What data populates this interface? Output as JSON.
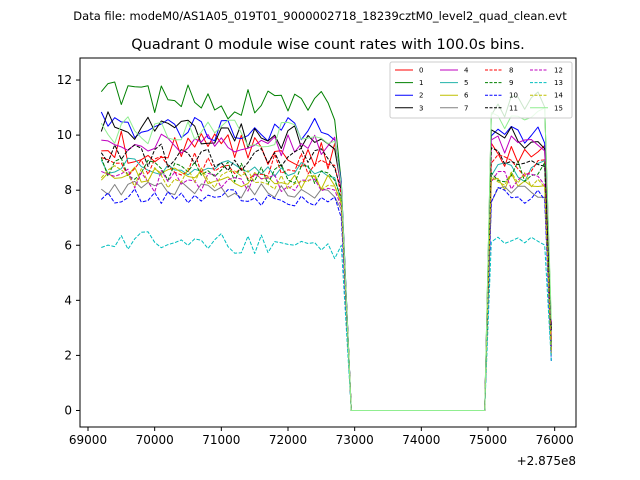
{
  "chart_data": {
    "type": "line",
    "suptitle": "Data file: modeM0/AS1A05_019T01_9000002718_18239cztM0_level2_quad_clean.evt",
    "title": "Quadrant 0 module wise count rates with 100.0s bins.",
    "xlabel": "",
    "ylabel": "",
    "x_offset_label": "+2.875e8",
    "xlim": [
      68880,
      76320
    ],
    "ylim": [
      -0.6,
      12.8
    ],
    "x_ticks": [
      69000,
      70000,
      71000,
      72000,
      73000,
      74000,
      75000,
      76000
    ],
    "x_tick_labels": [
      "69000",
      "70000",
      "71000",
      "72000",
      "73000",
      "74000",
      "75000",
      "76000"
    ],
    "y_ticks": [
      0,
      2,
      4,
      6,
      8,
      10,
      12
    ],
    "y_tick_labels": [
      "0",
      "2",
      "4",
      "6",
      "8",
      "10",
      "12"
    ],
    "grid": false,
    "legend_position": "upper right",
    "legend_columns": 4,
    "segment1": {
      "x_start": 69200,
      "x_step": 100,
      "points": 37
    },
    "gap": {
      "x_start": 72950,
      "x_end": 74950,
      "value": 0
    },
    "segment2": {
      "x_start": 75050,
      "x_step": 100,
      "points": 10
    },
    "series": [
      {
        "name": "0",
        "color": "#ff0000",
        "dash": "solid",
        "level1": 9.6,
        "amp1": 0.6,
        "slope1": -0.3,
        "end1": 8.1,
        "level2": 9.3,
        "amp2": 0.5,
        "end2": 2.6
      },
      {
        "name": "1",
        "color": "#008000",
        "dash": "solid",
        "level1": 11.4,
        "amp1": 0.6,
        "slope1": -0.4,
        "end1": 8.3,
        "level2": 11.0,
        "amp2": 0.6,
        "end2": 3.0
      },
      {
        "name": "2",
        "color": "#0000ff",
        "dash": "solid",
        "level1": 10.4,
        "amp1": 0.5,
        "slope1": -0.3,
        "end1": 8.3,
        "level2": 10.1,
        "amp2": 0.4,
        "end2": 2.3
      },
      {
        "name": "3",
        "color": "#000000",
        "dash": "solid",
        "level1": 10.4,
        "amp1": 0.5,
        "slope1": -0.6,
        "end1": 8.1,
        "level2": 9.9,
        "amp2": 0.4,
        "end2": 2.2
      },
      {
        "name": "4",
        "color": "#bf00bf",
        "dash": "solid",
        "level1": 9.8,
        "amp1": 0.4,
        "slope1": -0.2,
        "end1": 7.9,
        "level2": 9.6,
        "amp2": 0.4,
        "end2": 3.1
      },
      {
        "name": "5",
        "color": "#20b2aa",
        "dash": "solid",
        "level1": 8.9,
        "amp1": 0.3,
        "slope1": -0.2,
        "end1": 7.6,
        "level2": 8.7,
        "amp2": 0.4,
        "end2": 2.4
      },
      {
        "name": "6",
        "color": "#bfbf00",
        "dash": "solid",
        "level1": 8.6,
        "amp1": 0.3,
        "slope1": -0.3,
        "end1": 7.5,
        "level2": 8.3,
        "amp2": 0.3,
        "end2": 2.1
      },
      {
        "name": "7",
        "color": "#808080",
        "dash": "solid",
        "level1": 8.1,
        "amp1": 0.3,
        "slope1": -0.2,
        "end1": 7.3,
        "level2": 7.9,
        "amp2": 0.4,
        "end2": 2.0
      },
      {
        "name": "8",
        "color": "#ff0000",
        "dash": "dashed",
        "level1": 9.0,
        "amp1": 0.5,
        "slope1": -0.2,
        "end1": 7.8,
        "level2": 8.9,
        "amp2": 0.4,
        "end2": 2.5
      },
      {
        "name": "9",
        "color": "#008000",
        "dash": "dashed",
        "level1": 8.8,
        "amp1": 0.4,
        "slope1": -0.3,
        "end1": 7.7,
        "level2": 8.7,
        "amp2": 0.4,
        "end2": 2.4
      },
      {
        "name": "10",
        "color": "#0000ff",
        "dash": "dashed",
        "level1": 7.8,
        "amp1": 0.3,
        "slope1": -0.1,
        "end1": 7.0,
        "level2": 7.8,
        "amp2": 0.3,
        "end2": 1.8
      },
      {
        "name": "11",
        "color": "#000000",
        "dash": "dashed",
        "level1": 9.3,
        "amp1": 0.5,
        "slope1": -0.2,
        "end1": 8.0,
        "level2": 9.2,
        "amp2": 0.4,
        "end2": 2.9
      },
      {
        "name": "12",
        "color": "#bf00bf",
        "dash": "dashed",
        "level1": 8.4,
        "amp1": 0.4,
        "slope1": -0.3,
        "end1": 7.4,
        "level2": 8.3,
        "amp2": 0.4,
        "end2": 2.2
      },
      {
        "name": "13",
        "color": "#00bfbf",
        "dash": "dashed",
        "level1": 6.2,
        "amp1": 0.4,
        "slope1": -0.3,
        "end1": 6.0,
        "level2": 6.1,
        "amp2": 0.2,
        "end2": 1.8
      },
      {
        "name": "14",
        "color": "#bfbf00",
        "dash": "dashed",
        "level1": 8.5,
        "amp1": 0.4,
        "slope1": -0.2,
        "end1": 7.6,
        "level2": 8.4,
        "amp2": 0.3,
        "end2": 2.1
      },
      {
        "name": "15",
        "color": "#90ee90",
        "dash": "solid",
        "level1": 10.2,
        "amp1": 0.5,
        "slope1": -0.2,
        "end1": 8.2,
        "level2": 10.8,
        "amp2": 0.6,
        "end2": 3.3
      }
    ]
  }
}
